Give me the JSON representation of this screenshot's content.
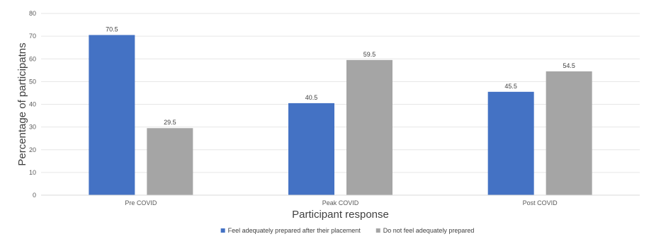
{
  "chart_data": {
    "type": "bar",
    "categories": [
      "Pre COVID",
      "Peak COVID",
      "Post COVID"
    ],
    "series": [
      {
        "name": "Feel adequately prepared after their placement",
        "color": "#4472C4",
        "values": [
          70.5,
          40.5,
          45.5
        ]
      },
      {
        "name": "Do not feel adequately prepared",
        "color": "#A5A5A5",
        "values": [
          29.5,
          59.5,
          54.5
        ]
      }
    ],
    "xlabel": "Participant response",
    "ylabel": "Percentage of participatns",
    "ylim": [
      0,
      80
    ],
    "yticks": [
      0,
      10,
      20,
      30,
      40,
      50,
      60,
      70,
      80
    ],
    "grid": true,
    "legend": "bottom"
  }
}
